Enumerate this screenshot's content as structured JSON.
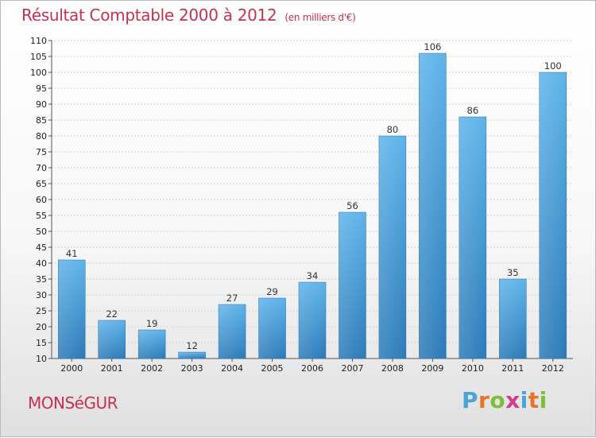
{
  "title": "Résultat Comptable 2000 à 2012",
  "unit_label": "(en milliers d'€)",
  "town": "MONSéGUR",
  "logo": {
    "letters": [
      "P",
      "r",
      "o",
      "x",
      "i",
      "t",
      "i"
    ],
    "colors": [
      "#4aa3d9",
      "#e8732a",
      "#7bbf3b",
      "#d63a8c",
      "#4aa3d9",
      "#e8732a",
      "#7bbf3b"
    ]
  },
  "colors": {
    "bar_top": "#5eb3ea",
    "bar_bottom": "#2b7ab8",
    "accent": "#c8314f"
  },
  "chart_data": {
    "type": "bar",
    "title": "Résultat Comptable 2000 à 2012",
    "ylabel": "(en milliers d'€)",
    "categories": [
      "2000",
      "2001",
      "2002",
      "2003",
      "2004",
      "2005",
      "2006",
      "2007",
      "2008",
      "2009",
      "2010",
      "2011",
      "2012"
    ],
    "values": [
      41,
      22,
      19,
      12,
      27,
      29,
      34,
      56,
      80,
      106,
      86,
      35,
      100
    ],
    "ylim": [
      10,
      110
    ],
    "yticks": [
      10,
      15,
      20,
      25,
      30,
      35,
      40,
      45,
      50,
      55,
      60,
      65,
      70,
      75,
      80,
      85,
      90,
      95,
      100,
      105,
      110
    ],
    "grid": true
  }
}
